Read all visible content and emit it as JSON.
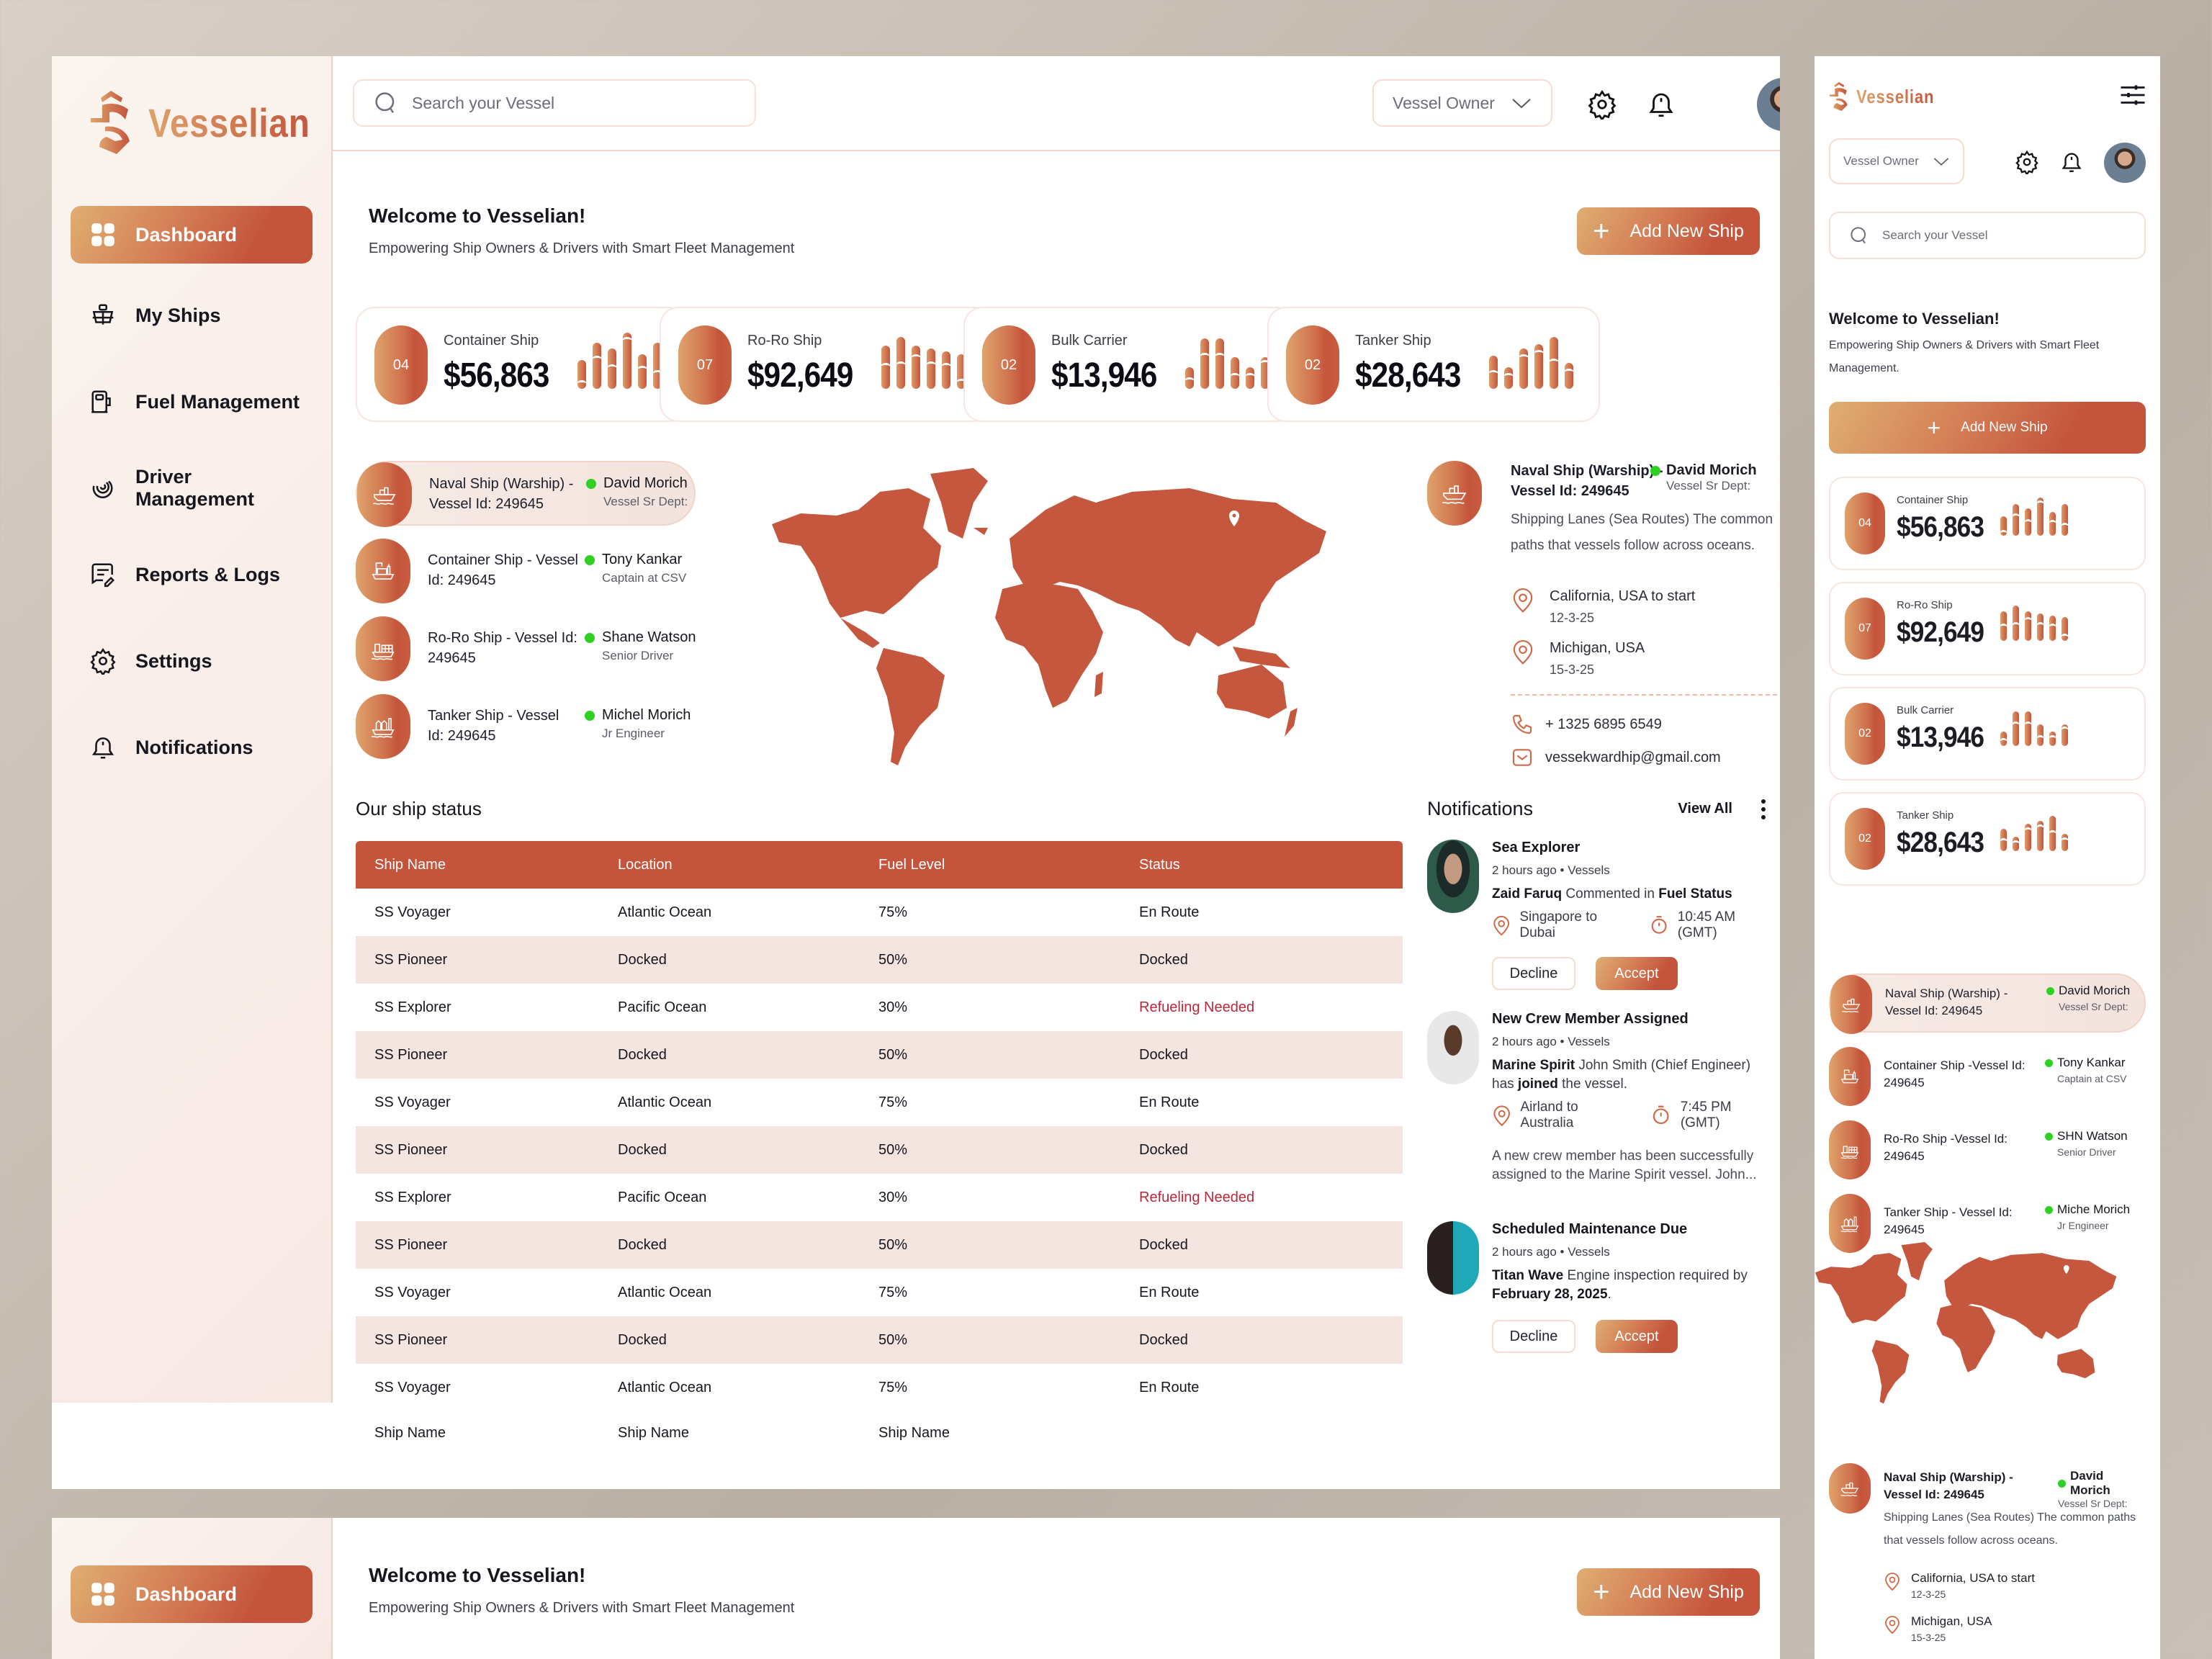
{
  "brand": {
    "name": "Vesselian",
    "accent": "#c4553c",
    "accent_light": "#dfae72",
    "status_online": "#2ed123",
    "warning_text": "#b8283a"
  },
  "sidebar": {
    "items": [
      {
        "label": "Dashboard",
        "icon": "dashboard-grid-icon",
        "active": true
      },
      {
        "label": "My Ships",
        "icon": "ship-icon"
      },
      {
        "label": "Fuel Management",
        "icon": "fuel-pump-icon"
      },
      {
        "label": "Driver Management",
        "icon": "steering-swirl-icon"
      },
      {
        "label": "Reports & Logs",
        "icon": "report-edit-icon"
      },
      {
        "label": "Settings",
        "icon": "gear-icon"
      },
      {
        "label": "Notifications",
        "icon": "bell-icon"
      }
    ]
  },
  "header": {
    "search_placeholder": "Search your Vessel",
    "role_select": "Vessel Owner"
  },
  "welcome": {
    "title": "Welcome to Vesselian!",
    "subtitle": "Empowering Ship Owners & Drivers with Smart Fleet Management",
    "subtitle_mobile": "Empowering Ship Owners & Drivers with Smart Fleet Management.",
    "add_button": "Add New Ship"
  },
  "stats": [
    {
      "badge": "04",
      "label": "Container Ship",
      "value": "$56,863",
      "bars": [
        40,
        64,
        56,
        78,
        48,
        64
      ],
      "cuts": [
        28,
        18,
        22,
        6,
        16,
        38
      ]
    },
    {
      "badge": "07",
      "label": "Ro-Ro Ship",
      "value": "$92,649",
      "bars": [
        60,
        72,
        60,
        56,
        52,
        48
      ],
      "cuts": [
        24,
        34,
        12,
        18,
        16,
        34
      ]
    },
    {
      "badge": "02",
      "label": "Bulk Carrier",
      "value": "$13,946",
      "bars": [
        30,
        70,
        70,
        44,
        30,
        44
      ],
      "cuts": [
        14,
        20,
        20,
        22,
        8,
        4
      ]
    },
    {
      "badge": "02",
      "label": "Tanker Ship",
      "value": "$28,643",
      "bars": [
        46,
        30,
        56,
        62,
        72,
        36
      ],
      "cuts": [
        20,
        8,
        8,
        8,
        30,
        8
      ]
    }
  ],
  "vessels": [
    {
      "title": "Naval Ship (Warship) - Vessel Id: 249645",
      "title_mobile": "Naval Ship (Warship) - Vessel Id: 249645",
      "driver": "David Morich",
      "driver_mobile": "David Morich",
      "role": "Vessel Sr Dept:",
      "icon": "warship-icon",
      "selected": true
    },
    {
      "title": "Container Ship - Vessel Id: 249645",
      "title_mobile": "Container Ship -Vessel Id: 249645",
      "driver": "Tony Kankar",
      "driver_mobile": "Tony Kankar",
      "role": "Captain at CSV",
      "icon": "container-ship-icon"
    },
    {
      "title": "Ro-Ro Ship - Vessel Id: 249645",
      "title_mobile": "Ro-Ro Ship -Vessel Id: 249645",
      "driver": "Shane Watson",
      "driver_mobile": "SHN Watson",
      "role": "Senior Driver",
      "icon": "roro-ship-icon"
    },
    {
      "title": "Tanker Ship - Vessel Id: 249645",
      "title_mobile": "Tanker Ship - Vessel Id: 249645",
      "driver": "Michel Morich",
      "driver_mobile": "Miche Morich",
      "role": "Jr Engineer",
      "icon": "tanker-ship-icon"
    }
  ],
  "detail": {
    "title": "Naval Ship (Warship) - Vessel Id: 249645",
    "driver": "David Morich",
    "role": "Vessel Sr Dept:",
    "description": "Shipping Lanes (Sea Routes)  The common paths that vessels follow across oceans.",
    "stops": [
      {
        "place": "California, USA to start",
        "date": "12-3-25"
      },
      {
        "place": "Michigan, USA",
        "date": "15-3-25"
      }
    ],
    "phone": "+ 1325 6895 6549",
    "email": "vessekwardhip@gmail.com"
  },
  "ship_status": {
    "title": "Our ship status",
    "columns": [
      "Ship Name",
      "Location",
      "Fuel Level",
      "Status"
    ],
    "rows": [
      [
        "SS Voyager",
        "Atlantic Ocean",
        "75%",
        "En Route"
      ],
      [
        "SS Pioneer",
        "Docked",
        "50%",
        "Docked"
      ],
      [
        "SS Explorer",
        "Pacific Ocean",
        "30%",
        "Refueling Needed"
      ],
      [
        "SS Pioneer",
        "Docked",
        "50%",
        "Docked"
      ],
      [
        "SS Voyager",
        "Atlantic Ocean",
        "75%",
        "En Route"
      ],
      [
        "SS Pioneer",
        "Docked",
        "50%",
        "Docked"
      ],
      [
        "SS Explorer",
        "Pacific Ocean",
        "30%",
        "Refueling Needed"
      ],
      [
        "SS Pioneer",
        "Docked",
        "50%",
        "Docked"
      ],
      [
        "SS Voyager",
        "Atlantic Ocean",
        "75%",
        "En Route"
      ],
      [
        "SS Pioneer",
        "Docked",
        "50%",
        "Docked"
      ],
      [
        "SS Voyager",
        "Atlantic Ocean",
        "75%",
        "En Route"
      ],
      [
        "Ship Name",
        "Ship Name",
        "Ship Name",
        ""
      ]
    ]
  },
  "notifications": {
    "title": "Notifications",
    "view_all": "View All",
    "items": [
      {
        "title": "Sea Explorer",
        "meta": "2 hours ago • Vessels",
        "actor": "Zaid Faruq",
        "action": " Commented in ",
        "target": "Fuel Status",
        "route": "Singapore to Dubai",
        "time": "10:45 AM (GMT)",
        "decline": "Decline",
        "accept": "Accept"
      },
      {
        "title": "New Crew Member Assigned",
        "meta": "2 hours ago • Vessels",
        "vessel": "Marine Spirit",
        "text1": " John Smith (Chief Engineer) has ",
        "bold2": "joined",
        "text2": " the vessel.",
        "route": "Airland to Australia",
        "time": "7:45 PM (GMT)",
        "summary": "A new crew member has been successfully assigned to the Marine Spirit vessel. John..."
      },
      {
        "title": "Scheduled Maintenance Due",
        "meta": "2 hours ago • Vessels",
        "vessel": "Titan Wave",
        "text1": " Engine inspection required by ",
        "date": "February 28, 2025",
        "text2": ".",
        "decline": "Decline",
        "accept": "Accept"
      }
    ]
  }
}
